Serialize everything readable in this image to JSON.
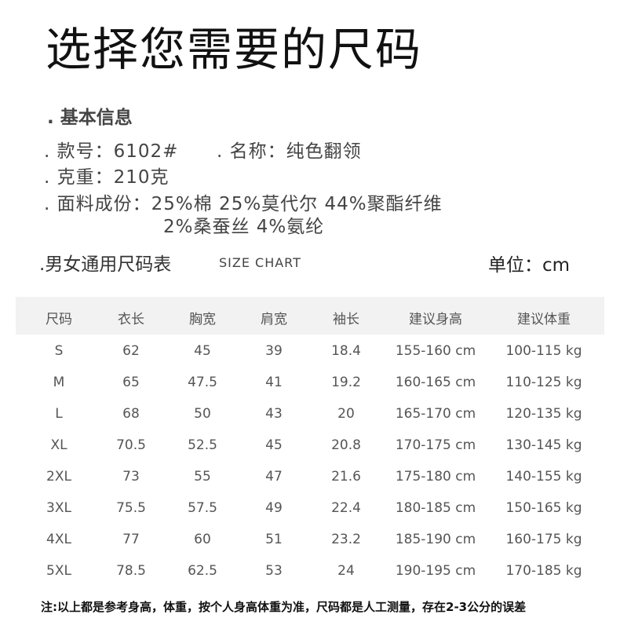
{
  "title": "选择您需要的尺码",
  "basic_info": {
    "heading": ". 基本信息",
    "style_no": ". 款号：6102#",
    "name": ". 名称：纯色翻领",
    "weight": ". 克重：210克",
    "fabric_line1": ". 面料成份：25%棉 25%莫代尔 44%聚酯纤维",
    "fabric_line2": "2%桑蚕丝 4%氨纶"
  },
  "size_chart": {
    "label": ".男女通用尺码表",
    "label_en": "SIZE CHART",
    "unit": "单位：cm",
    "headers": [
      "尺码",
      "衣长",
      "胸宽",
      "肩宽",
      "袖长",
      "建议身高",
      "建议体重"
    ],
    "rows": [
      [
        "S",
        "62",
        "45",
        "39",
        "18.4",
        "155-160 cm",
        "100-115 kg"
      ],
      [
        "M",
        "65",
        "47.5",
        "41",
        "19.2",
        "160-165 cm",
        "110-125 kg"
      ],
      [
        "L",
        "68",
        "50",
        "43",
        "20",
        "165-170 cm",
        "120-135 kg"
      ],
      [
        "XL",
        "70.5",
        "52.5",
        "45",
        "20.8",
        "170-175 cm",
        "130-145 kg"
      ],
      [
        "2XL",
        "73",
        "55",
        "47",
        "21.6",
        "175-180 cm",
        "140-155 kg"
      ],
      [
        "3XL",
        "75.5",
        "57.5",
        "49",
        "22.4",
        "180-185 cm",
        "150-165 kg"
      ],
      [
        "4XL",
        "77",
        "60",
        "51",
        "23.2",
        "185-190 cm",
        "160-175 kg"
      ],
      [
        "5XL",
        "78.5",
        "62.5",
        "53",
        "24",
        "190-195 cm",
        "170-185 kg"
      ]
    ]
  },
  "note": "注:以上都是参考身高，体重，按个人身高体重为准，尺码都是人工测量，存在2-3公分的误差"
}
